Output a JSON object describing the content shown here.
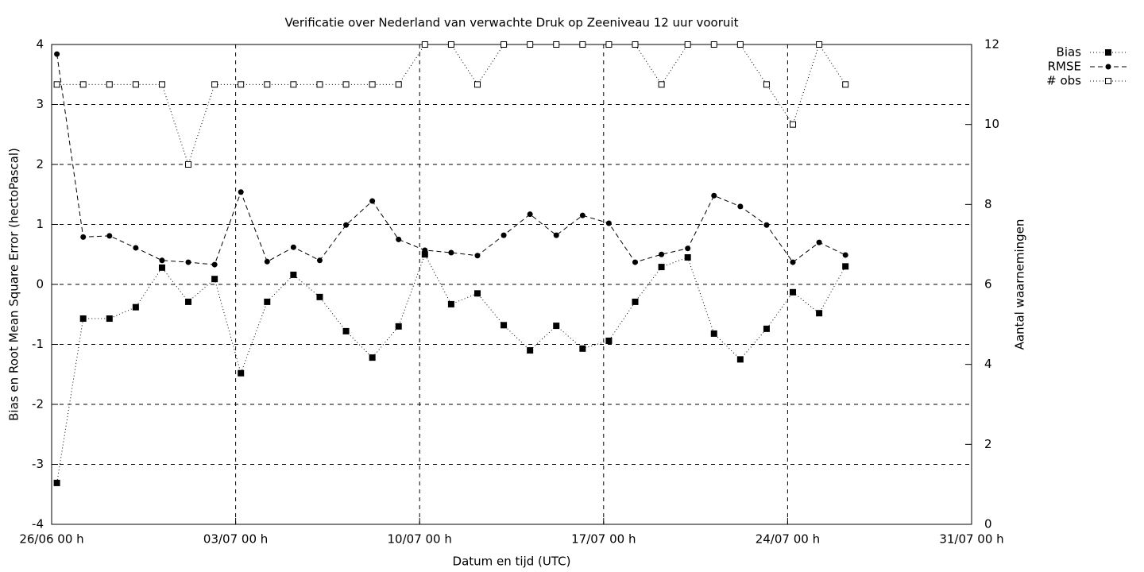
{
  "chart_data": {
    "type": "line",
    "title": "Verificatie over Nederland van verwachte Druk op Zeeniveau 12 uur vooruit",
    "x_label": "Datum en tijd (UTC)",
    "y_label": "Bias en Root Mean Square Error (hectoPascal)",
    "y2_label": "Aantal waarnemingen",
    "x": [
      0.2,
      1.2,
      2.2,
      3.2,
      4.2,
      5.2,
      6.2,
      7.2,
      8.2,
      9.2,
      10.2,
      11.2,
      12.2,
      13.2,
      14.2,
      15.2,
      16.2,
      17.2,
      18.2,
      19.2,
      20.2,
      21.2,
      22.2,
      23.2,
      24.2,
      25.2,
      26.2,
      27.2,
      28.2,
      29.2,
      30.2
    ],
    "series": [
      {
        "name": "Bias",
        "color": "#000000",
        "line": "dotted",
        "marker": "square",
        "values": [
          -3.31,
          -0.57,
          -0.57,
          -0.38,
          0.28,
          -0.29,
          0.09,
          -1.48,
          -0.29,
          0.16,
          -0.21,
          -0.78,
          -1.22,
          -0.7,
          0.5,
          -0.33,
          -0.15,
          -0.68,
          -1.1,
          -0.69,
          -1.07,
          -0.94,
          -0.29,
          0.29,
          0.45,
          -0.82,
          -1.25,
          -0.74,
          -0.13,
          -0.48,
          0.3
        ]
      },
      {
        "name": "RMSE",
        "color": "#000000",
        "line": "dashed",
        "marker": "circle",
        "values": [
          3.84,
          0.79,
          0.81,
          0.61,
          0.4,
          0.37,
          0.33,
          1.54,
          0.38,
          0.62,
          0.4,
          0.99,
          1.39,
          0.75,
          0.57,
          0.53,
          0.48,
          0.82,
          1.17,
          0.82,
          1.15,
          1.02,
          0.37,
          0.5,
          0.6,
          1.48,
          1.3,
          0.99,
          0.37,
          0.7,
          0.49
        ]
      },
      {
        "name": "# obs",
        "color": "#000000",
        "line": "dotted",
        "marker": "open-square",
        "axis": "y2",
        "values": [
          11,
          11,
          11,
          11,
          11,
          9,
          11,
          11,
          11,
          11,
          11,
          11,
          11,
          11,
          12,
          12,
          11,
          12,
          12,
          12,
          12,
          12,
          12,
          11,
          12,
          12,
          12,
          11,
          10,
          12,
          11
        ]
      }
    ],
    "xlim": [
      0,
      35
    ],
    "xticks": [
      {
        "value": 0,
        "label": "26/06 00 h"
      },
      {
        "value": 7,
        "label": "03/07 00 h"
      },
      {
        "value": 14,
        "label": "10/07 00 h"
      },
      {
        "value": 21,
        "label": "17/07 00 h"
      },
      {
        "value": 28,
        "label": "24/07 00 h"
      },
      {
        "value": 35,
        "label": "31/07 00 h"
      }
    ],
    "ylim": [
      -4,
      4
    ],
    "yticks": [
      -4,
      -3,
      -2,
      -1,
      0,
      1,
      2,
      3,
      4
    ],
    "y2lim": [
      0,
      12
    ],
    "y2ticks": [
      0,
      2,
      4,
      6,
      8,
      10,
      12
    ],
    "grid": true,
    "legend": "top-right-outside"
  }
}
